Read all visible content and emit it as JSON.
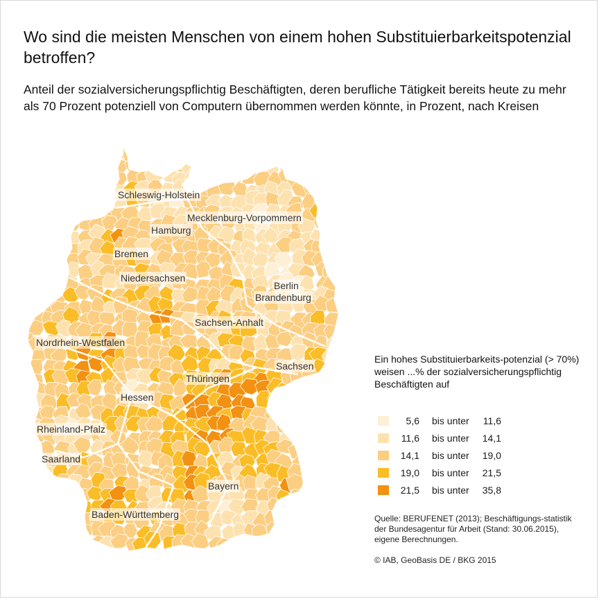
{
  "title": "Wo sind die meisten Menschen von einem hohen Substituierbarkeitspotenzial betroffen?",
  "subtitle": "Anteil der sozialversicherungspflichtig Beschäftigten, deren berufliche Tätigkeit bereits heute zu mehr als 70 Prozent potenziell von Computern übernommen werden könnte, in Prozent, nach Kreisen",
  "states": {
    "sh": "Schleswig-Holstein",
    "hh": "Hamburg",
    "mv": "Mecklenburg-Vorpommern",
    "hb": "Bremen",
    "ni": "Niedersachsen",
    "be": "Berlin",
    "bb": "Brandenburg",
    "st": "Sachsen-Anhalt",
    "nw": "Nordrhein-Westfalen",
    "sn": "Sachsen",
    "th": "Thüringen",
    "he": "Hessen",
    "rp": "Rheinland-Pfalz",
    "sl": "Saarland",
    "by": "Bayern",
    "bw": "Baden-Württemberg"
  },
  "legend": {
    "title": "Ein hohes Substituierbarkeits-potenzial (> 70%) weisen ...% der sozialversicherungspflichtig Beschäftigten auf",
    "items": [
      {
        "from": "5,6",
        "mid": "bis unter",
        "to": "11,6",
        "color": "#fdf0d6"
      },
      {
        "from": "11,6",
        "mid": "bis unter",
        "to": "14,1",
        "color": "#fde2b0"
      },
      {
        "from": "14,1",
        "mid": "bis unter",
        "to": "19,0",
        "color": "#fcce82"
      },
      {
        "from": "19,0",
        "mid": "bis unter",
        "to": "21,5",
        "color": "#fbbd27"
      },
      {
        "from": "21,5",
        "mid": "bis unter",
        "to": "35,8",
        "color": "#f39112"
      }
    ]
  },
  "source": "Quelle: BERUFENET (2013); Beschäftigungs-statistik der Bundesagentur für Arbeit (Stand: 30.06.2015), eigene Berechnungen.",
  "copyright": "© IAB, GeoBasis DE / BKG 2015"
}
